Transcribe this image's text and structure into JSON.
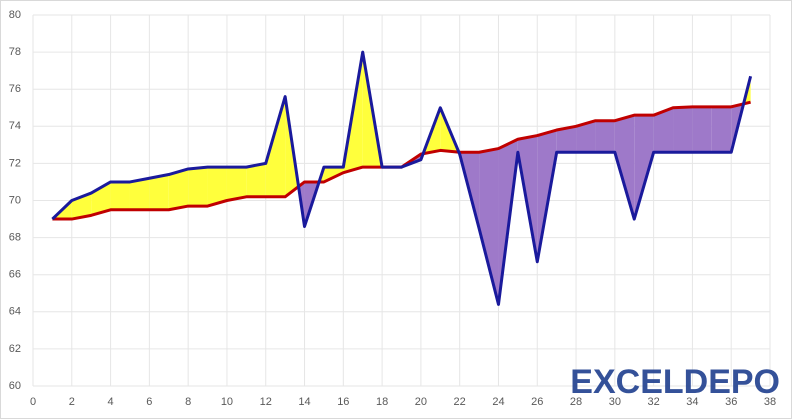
{
  "chart_data": {
    "type": "line",
    "x": [
      1,
      2,
      3,
      4,
      5,
      6,
      7,
      8,
      9,
      10,
      11,
      12,
      13,
      14,
      15,
      16,
      17,
      18,
      19,
      20,
      21,
      22,
      23,
      24,
      25,
      26,
      27,
      28,
      29,
      30,
      31,
      32,
      33,
      34,
      35,
      36,
      37
    ],
    "series": [
      {
        "color": "#c00000",
        "values": [
          69,
          69,
          69.2,
          69.5,
          69.5,
          69.5,
          69.5,
          69.7,
          69.7,
          70,
          70.2,
          70.2,
          70.2,
          71,
          71,
          71.5,
          71.8,
          71.8,
          71.8,
          72.5,
          72.7,
          72.6,
          72.6,
          72.8,
          73.3,
          73.5,
          73.8,
          74,
          74.3,
          74.3,
          74.6,
          74.6,
          75,
          75.05,
          75.05,
          75.05,
          75.3
        ]
      },
      {
        "color": "#1a1a9c",
        "values": [
          69,
          70,
          70.4,
          71,
          71,
          71.2,
          71.4,
          71.7,
          71.8,
          71.8,
          71.8,
          72,
          75.6,
          68.6,
          71.8,
          71.8,
          78,
          71.8,
          71.8,
          72.2,
          75,
          72.5,
          68.5,
          64.4,
          72.6,
          66.7,
          72.6,
          72.6,
          72.6,
          72.6,
          69,
          72.6,
          72.6,
          72.6,
          72.6,
          72.6,
          76.7
        ]
      }
    ],
    "fill_above_color": "#ffff3c",
    "fill_below_color": "#9e79c9",
    "xlim": [
      0,
      38
    ],
    "xticks": [
      0,
      2,
      4,
      6,
      8,
      10,
      12,
      14,
      16,
      18,
      20,
      22,
      24,
      26,
      28,
      30,
      32,
      34,
      36,
      38
    ],
    "ylim": [
      60,
      80
    ],
    "yticks": [
      60,
      62,
      64,
      66,
      68,
      70,
      72,
      74,
      76,
      78,
      80
    ],
    "grid": true,
    "watermark": "EXCELDEPO"
  }
}
